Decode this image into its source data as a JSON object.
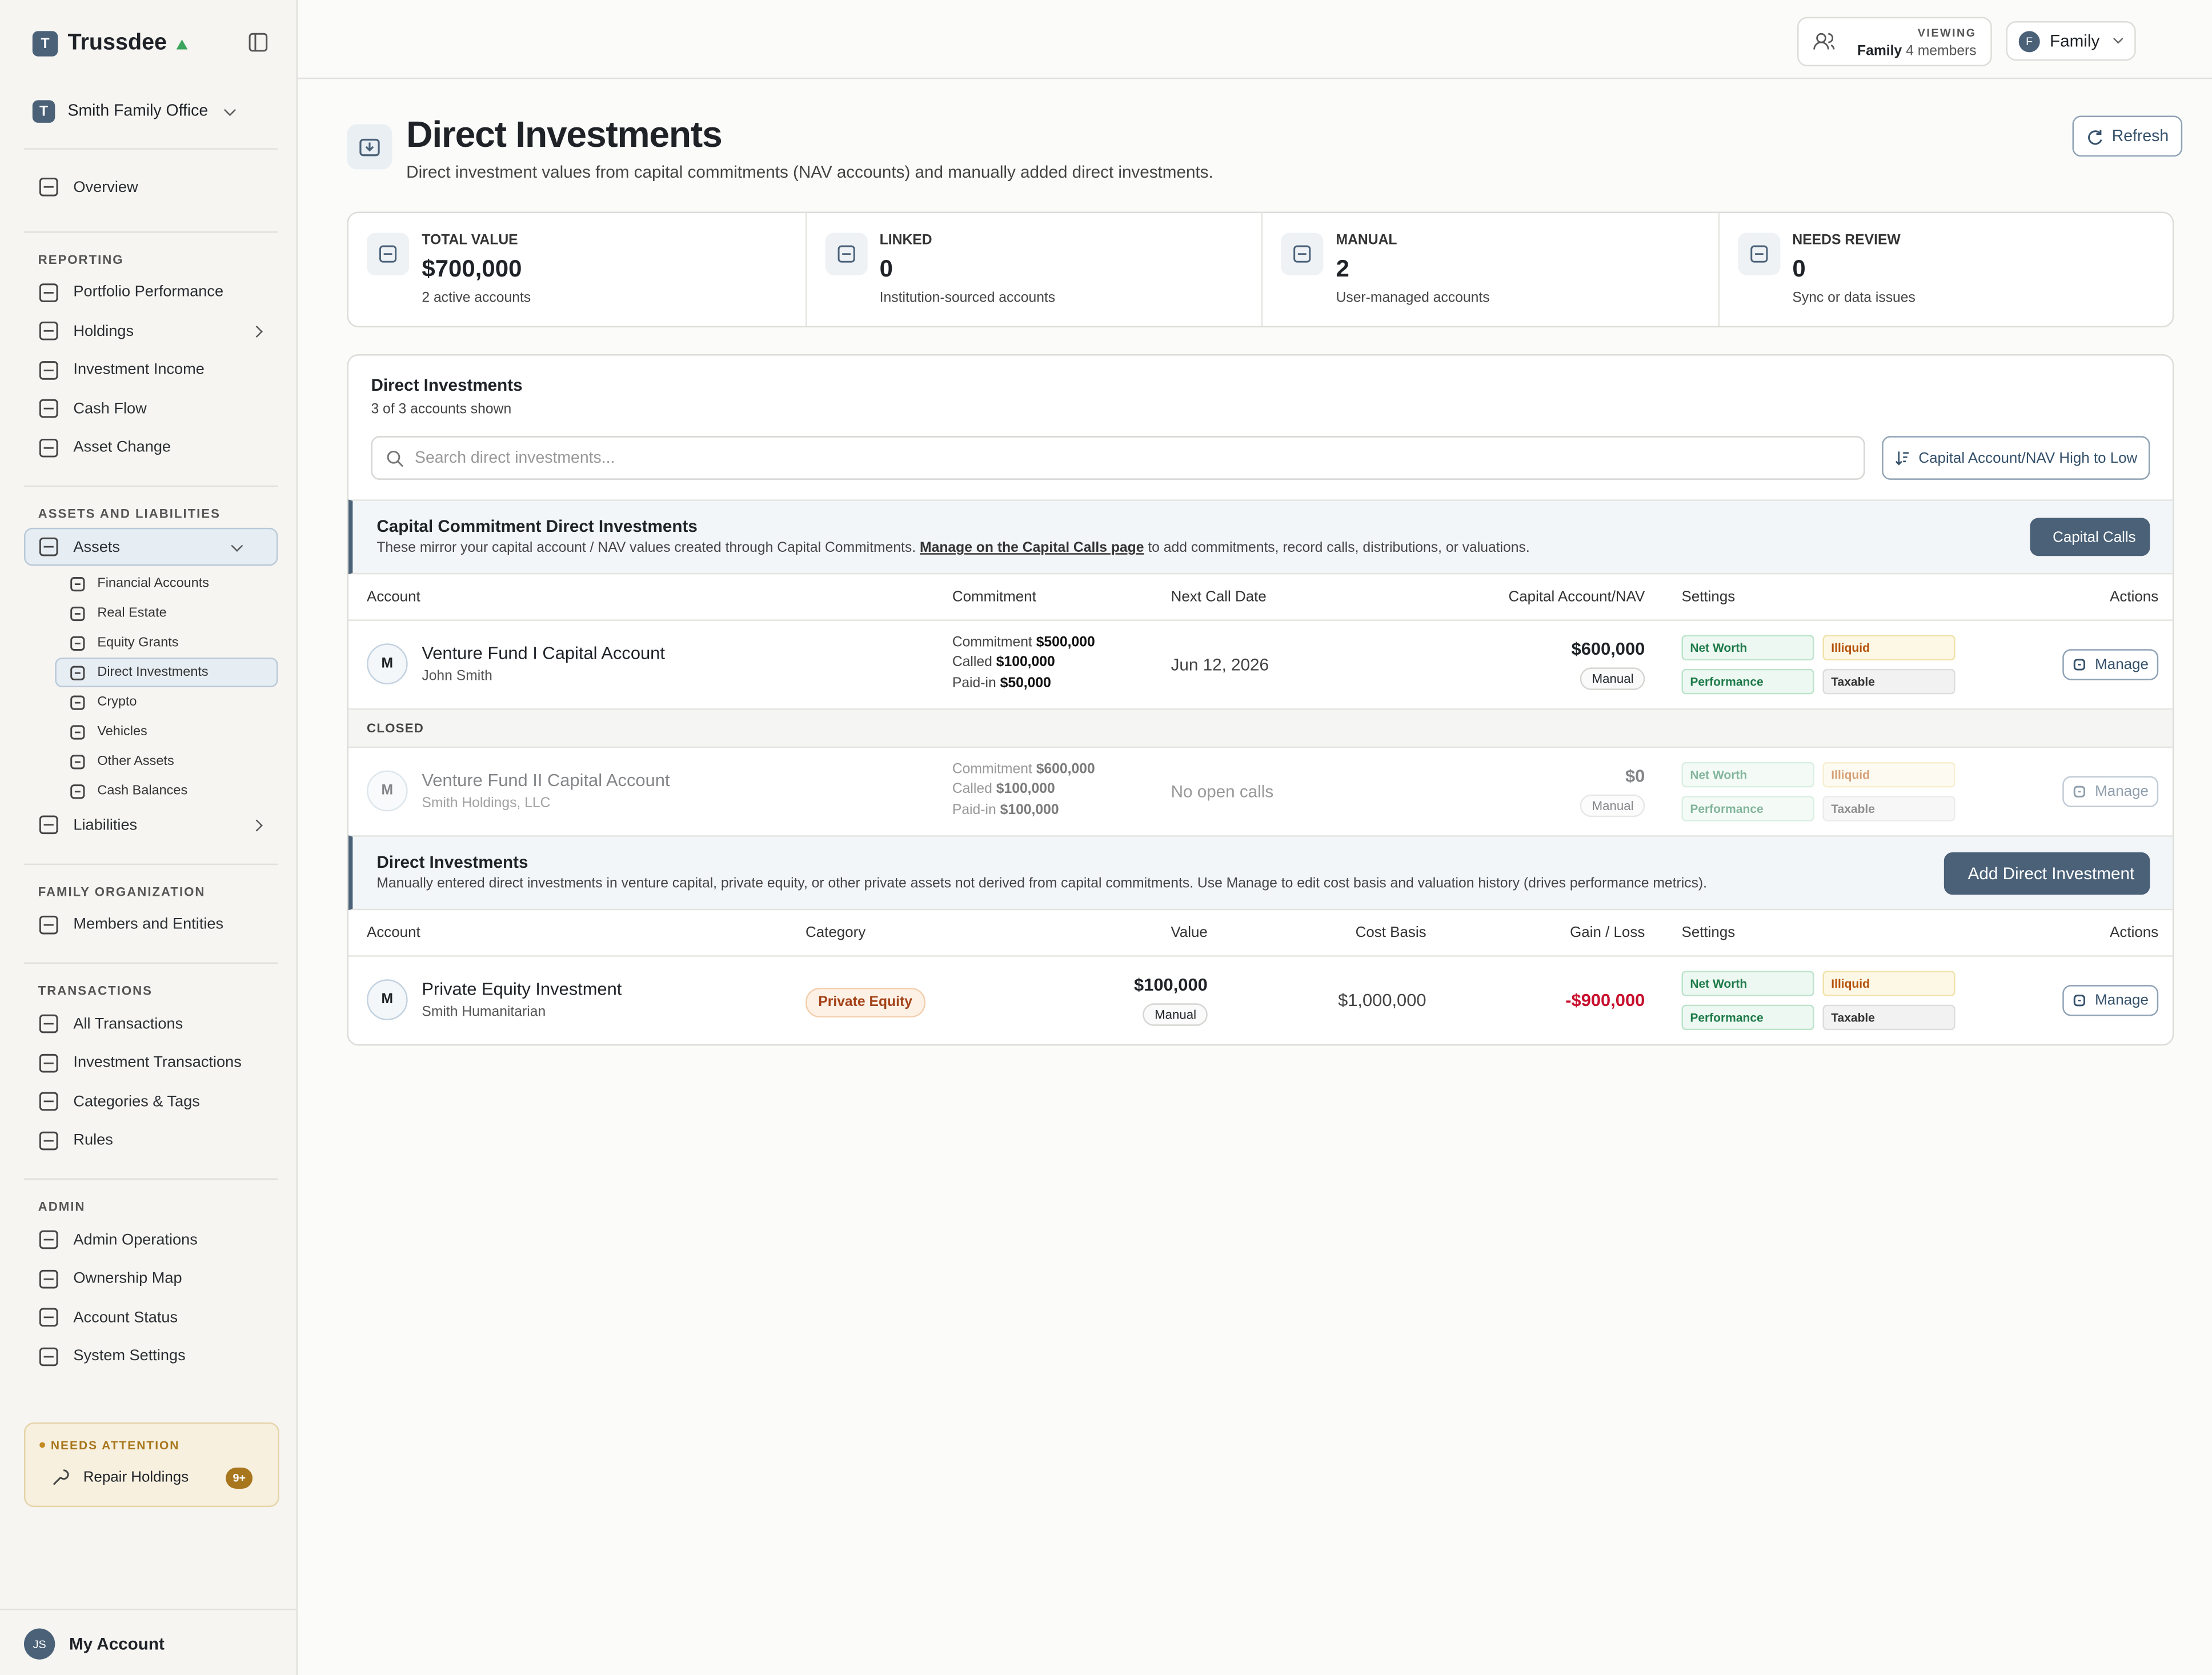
{
  "sidebar": {
    "brand_initial": "T",
    "brand": "Trussdee",
    "office_initial": "T",
    "office": "Smith Family Office",
    "overview": "Overview",
    "sections": [
      {
        "title": "REPORTING",
        "items": [
          "Portfolio Performance",
          "Holdings",
          "Investment Income",
          "Cash Flow",
          "Asset Change"
        ]
      },
      {
        "title": "ASSETS AND LIABILITIES",
        "items": [
          "Assets",
          "Liabilities"
        ],
        "assets_children": [
          "Financial Accounts",
          "Real Estate",
          "Equity Grants",
          "Direct Investments",
          "Crypto",
          "Vehicles",
          "Other Assets",
          "Cash Balances"
        ]
      },
      {
        "title": "FAMILY ORGANIZATION",
        "items": [
          "Members and Entities"
        ]
      },
      {
        "title": "TRANSACTIONS",
        "items": [
          "All Transactions",
          "Investment Transactions",
          "Categories & Tags",
          "Rules"
        ]
      },
      {
        "title": "ADMIN",
        "items": [
          "Admin Operations",
          "Ownership Map",
          "Account Status",
          "System Settings"
        ]
      }
    ],
    "attention": {
      "title": "NEEDS ATTENTION",
      "item": "Repair Holdings",
      "badge": "9+"
    },
    "account": {
      "initials": "JS",
      "label": "My Account"
    }
  },
  "topbar": {
    "viewing_label": "VIEWING",
    "viewing_name": "Family",
    "viewing_members": "4 members",
    "family_initial": "F",
    "family": "Family"
  },
  "header": {
    "title": "Direct Investments",
    "subtitle": "Direct investment values from capital commitments (NAV accounts) and manually added direct investments.",
    "refresh": "Refresh"
  },
  "stats": [
    {
      "label": "TOTAL VALUE",
      "value": "$700,000",
      "note": "2 active accounts"
    },
    {
      "label": "LINKED",
      "value": "0",
      "note": "Institution-sourced accounts"
    },
    {
      "label": "MANUAL",
      "value": "2",
      "note": "User-managed accounts"
    },
    {
      "label": "NEEDS REVIEW",
      "value": "0",
      "note": "Sync or data issues"
    }
  ],
  "panel": {
    "title": "Direct Investments",
    "count": "3 of 3 accounts shown",
    "search_placeholder": "Search direct investments...",
    "sort": "Capital Account/NAV High to Low"
  },
  "capital_section": {
    "title": "Capital Commitment Direct Investments",
    "desc_before": "These mirror your capital account / NAV values created through Capital Commitments.",
    "link": "Manage on the Capital Calls page",
    "desc_after": "to add commitments, record calls, distributions, or valuations.",
    "button": "Capital Calls",
    "columns": [
      "Account",
      "Commitment",
      "Next Call Date",
      "Capital Account/NAV",
      "Settings",
      "Actions"
    ],
    "closed_label": "CLOSED",
    "rows": [
      {
        "avatar": "M",
        "name": "Venture Fund I Capital Account",
        "owner": "John Smith",
        "commitment_label": "Commitment",
        "commitment": "$500,000",
        "called_label": "Called",
        "called": "$100,000",
        "paid_label": "Paid-in",
        "paid": "$50,000",
        "next_call": "Jun 12, 2026",
        "nav": "$600,000",
        "source": "Manual",
        "settings": [
          "Net Worth",
          "Illiquid",
          "Performance",
          "Taxable"
        ],
        "action": "Manage"
      },
      {
        "avatar": "M",
        "name": "Venture Fund II Capital Account",
        "owner": "Smith Holdings, LLC",
        "commitment_label": "Commitment",
        "commitment": "$600,000",
        "called_label": "Called",
        "called": "$100,000",
        "paid_label": "Paid-in",
        "paid": "$100,000",
        "next_call": "No open calls",
        "nav": "$0",
        "source": "Manual",
        "settings": [
          "Net Worth",
          "Illiquid",
          "Performance",
          "Taxable"
        ],
        "action": "Manage"
      }
    ]
  },
  "direct_section": {
    "title": "Direct Investments",
    "desc": "Manually entered direct investments in venture capital, private equity, or other private assets not derived from capital commitments. Use Manage to edit cost basis and valuation history (drives performance metrics).",
    "button": "Add Direct Investment",
    "columns": [
      "Account",
      "Category",
      "Value",
      "Cost Basis",
      "Gain / Loss",
      "Settings",
      "Actions"
    ],
    "rows": [
      {
        "avatar": "M",
        "name": "Private Equity Investment",
        "owner": "Smith Humanitarian",
        "category": "Private Equity",
        "value": "$100,000",
        "source": "Manual",
        "cost_basis": "$1,000,000",
        "gain_loss": "-$900,000",
        "settings": [
          "Net Worth",
          "Illiquid",
          "Performance",
          "Taxable"
        ],
        "action": "Manage"
      }
    ]
  }
}
